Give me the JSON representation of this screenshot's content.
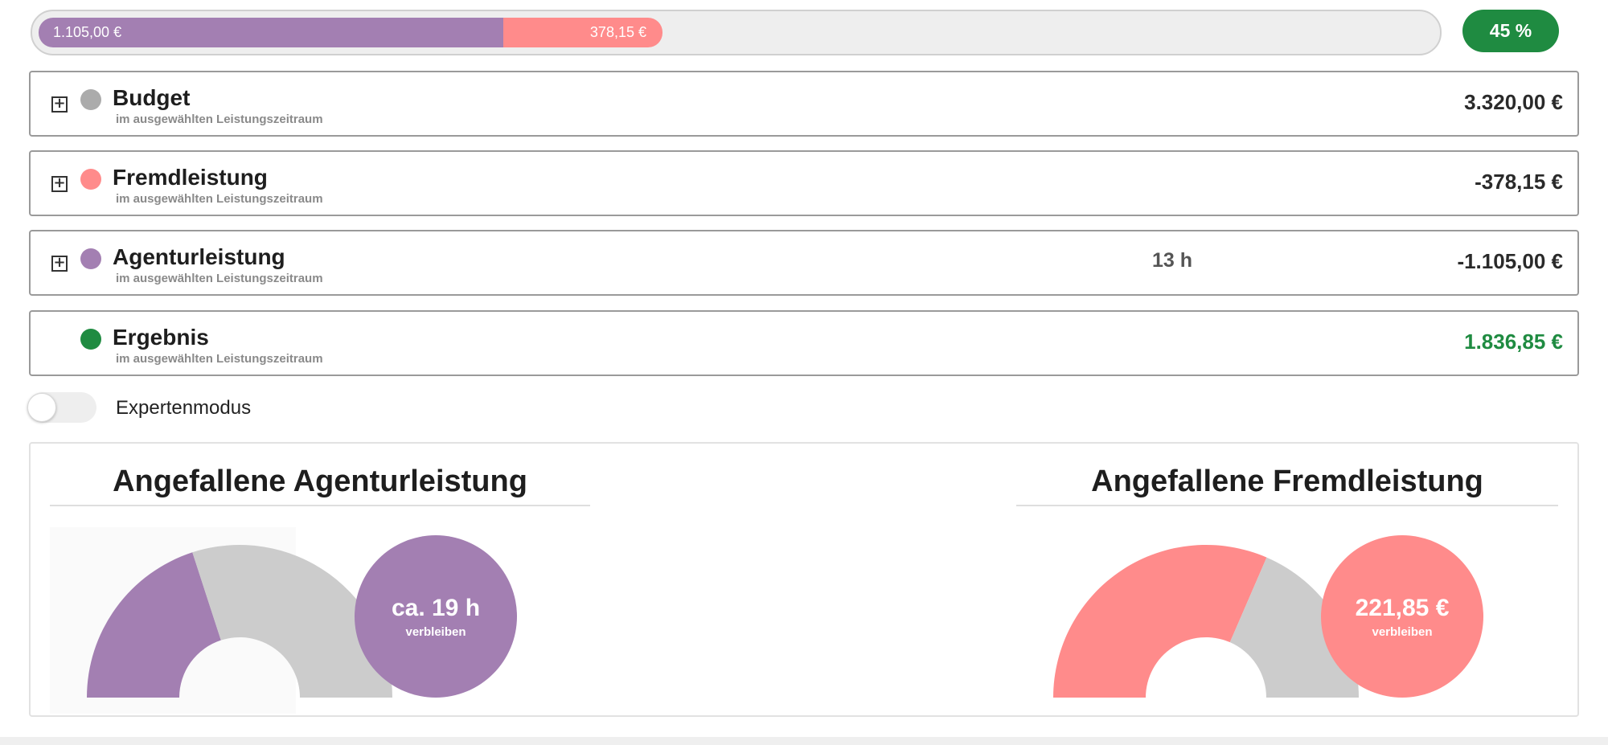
{
  "colors": {
    "agentur": "#a37fb2",
    "fremd": "#ff8b8b",
    "budget": "#ababab",
    "ergebnis": "#1f8b41",
    "remaining": "#cccccc",
    "panel_bg": "#ffffff"
  },
  "progress": {
    "agentur_label": "1.105,00 €",
    "agentur_fraction": 0.333,
    "fremd_label": "378,15 €",
    "fremd_fraction": 0.114,
    "percent_label": "45 %"
  },
  "rows": [
    {
      "title": "Budget",
      "subtitle": "im ausgewählten Leistungszeitraum",
      "hours": "",
      "amount": "3.320,00 €",
      "expand": "+"
    },
    {
      "title": "Fremdleistung",
      "subtitle": "im ausgewählten Leistungszeitraum",
      "hours": "",
      "amount": "-378,15 €",
      "expand": "+"
    },
    {
      "title": "Agenturleistung",
      "subtitle": "im ausgewählten Leistungszeitraum",
      "hours": "13 h",
      "amount": "-1.105,00 €",
      "expand": "+"
    },
    {
      "title": "Ergebnis",
      "subtitle": "im ausgewählten Leistungszeitraum",
      "hours": "",
      "amount": "1.836,85 €"
    }
  ],
  "expert_mode": {
    "label": "Expertenmodus",
    "enabled": false
  },
  "charts": {
    "agentur": {
      "title": "Angefallene Agenturleistung",
      "bubble_value": "ca. 19 h",
      "bubble_label": "verbleiben",
      "used_fraction": 0.4
    },
    "fremd": {
      "title": "Angefallene Fremdleistung",
      "bubble_value": "221,85 €",
      "bubble_label": "verbleiben",
      "used_fraction": 0.63
    }
  }
}
